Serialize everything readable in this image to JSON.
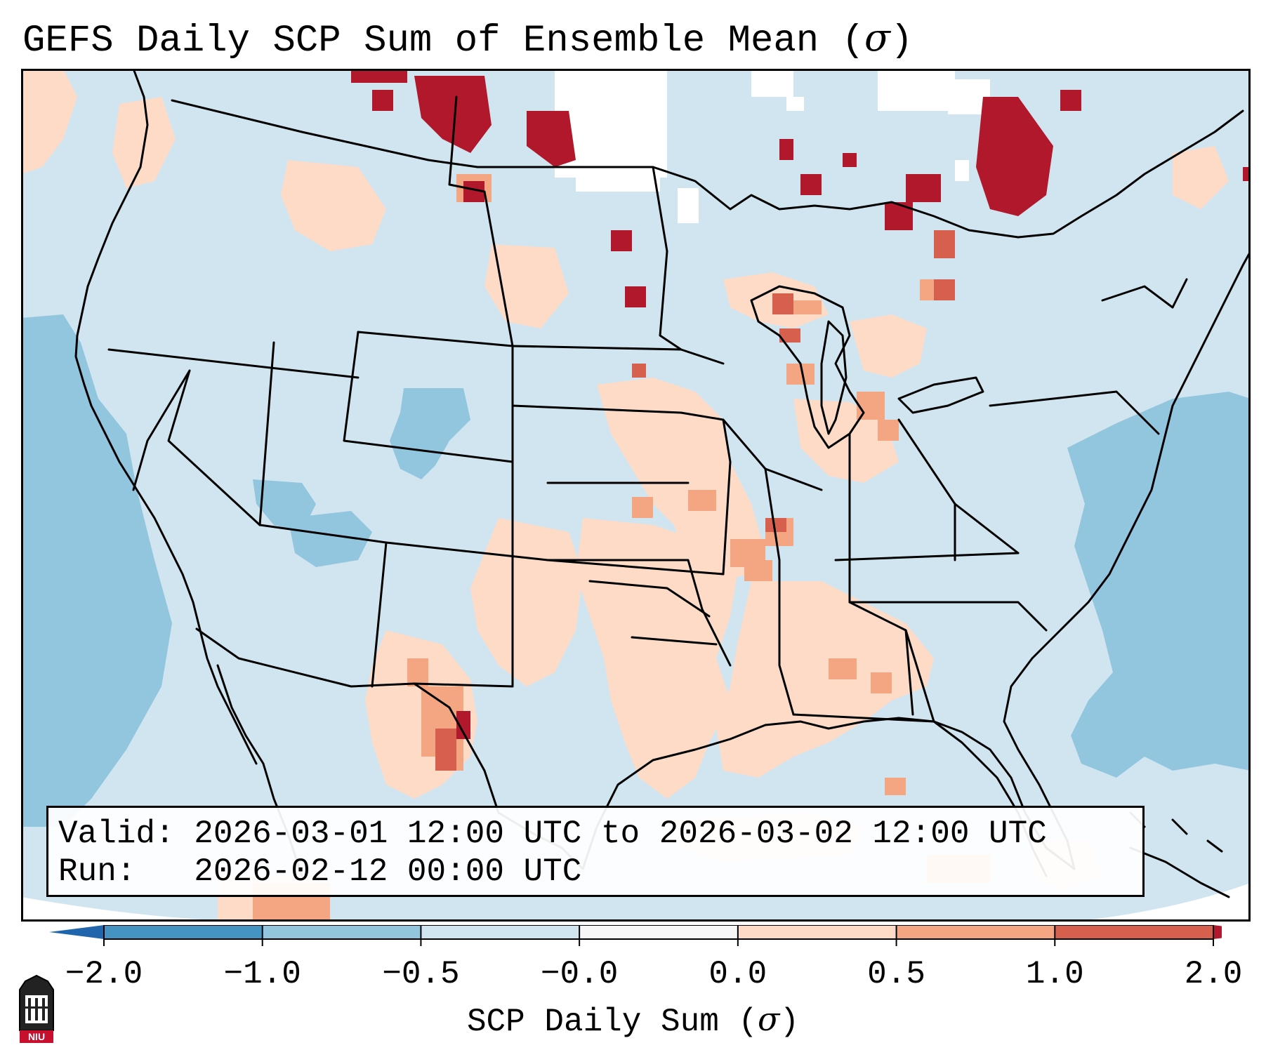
{
  "title": {
    "text": "GEFS Daily SCP Sum of Ensemble Mean (",
    "symbol": "σ",
    "close": ")"
  },
  "info": {
    "valid_label": "Valid:",
    "valid_value": "2026-03-01 12:00 UTC to 2026-03-02 12:00 UTC",
    "run_label": "Run:",
    "run_value": "2026-02-12 00:00 UTC"
  },
  "colorbar": {
    "label_text": "SCP Daily Sum (",
    "label_symbol": "σ",
    "label_close": ")",
    "ticks": [
      "−2.0",
      "−1.0",
      "−0.5",
      "−0.0",
      "0.0",
      "0.5",
      "1.0",
      "2.0"
    ],
    "bin_colors": [
      "#4393c3",
      "#92c5de",
      "#d1e5f0",
      "#f7f7f7",
      "#fddbc7",
      "#f4a582",
      "#d6604d"
    ],
    "extend_low_color": "#2166ac",
    "extend_high_color": "#b2182b"
  },
  "map": {
    "background_color": "#d1e5f0",
    "outline_color": "#000000",
    "logo_text": "NIU",
    "logo_color": "#c8102e"
  }
}
